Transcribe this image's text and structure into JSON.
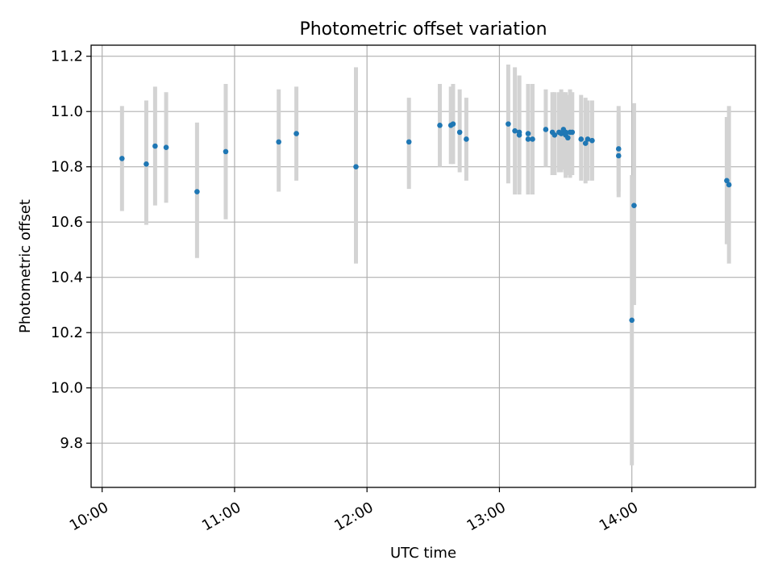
{
  "chart_data": {
    "type": "scatter",
    "title": "Photometric offset variation",
    "xlabel": "UTC time",
    "ylabel": "Photometric offset",
    "xlim": [
      "09:55",
      "14:56"
    ],
    "ylim": [
      9.64,
      11.24
    ],
    "grid": true,
    "x_ticks": [
      "10:00",
      "11:00",
      "12:00",
      "13:00",
      "14:00"
    ],
    "y_ticks": [
      9.8,
      10.0,
      10.2,
      10.4,
      10.6,
      10.8,
      11.0,
      11.2
    ],
    "colors": {
      "point": "#1f77b4",
      "errorbar": "#d3d3d3",
      "grid": "#b0b0b0"
    },
    "series": [
      {
        "x": [
          "10:09",
          "10:20",
          "10:24",
          "10:29",
          "10:43",
          "10:56",
          "11:20",
          "11:28",
          "11:55",
          "12:19",
          "12:33",
          "12:38",
          "12:39",
          "12:42",
          "12:45",
          "13:04",
          "13:07",
          "13:09",
          "13:09",
          "13:13",
          "13:13",
          "13:15",
          "13:21",
          "13:24",
          "13:25",
          "13:27",
          "13:28",
          "13:29",
          "13:30",
          "13:30",
          "13:31",
          "13:32",
          "13:33",
          "13:37",
          "13:39",
          "13:40",
          "13:42",
          "13:54",
          "13:54",
          "14:00",
          "14:01",
          "14:43",
          "14:44"
        ],
        "y": [
          10.83,
          10.81,
          10.875,
          10.87,
          10.71,
          10.855,
          10.89,
          10.92,
          10.8,
          10.89,
          10.95,
          10.95,
          10.955,
          10.925,
          10.9,
          10.955,
          10.93,
          10.915,
          10.925,
          10.92,
          10.9,
          10.9,
          10.935,
          10.925,
          10.915,
          10.925,
          10.92,
          10.935,
          10.915,
          10.925,
          10.905,
          10.925,
          10.925,
          10.9,
          10.885,
          10.9,
          10.895,
          10.865,
          10.84,
          10.245,
          10.66,
          10.75,
          10.735
        ],
        "err_low": [
          10.64,
          10.59,
          10.66,
          10.67,
          10.47,
          10.61,
          10.71,
          10.75,
          10.45,
          10.72,
          10.8,
          10.81,
          10.81,
          10.78,
          10.75,
          10.74,
          10.7,
          10.7,
          10.71,
          10.7,
          10.7,
          10.7,
          10.8,
          10.77,
          10.77,
          10.78,
          10.78,
          10.79,
          10.76,
          10.78,
          10.77,
          10.76,
          10.77,
          10.75,
          10.74,
          10.75,
          10.75,
          10.71,
          10.69,
          9.72,
          10.3,
          10.52,
          10.45
        ],
        "err_high": [
          11.02,
          11.04,
          11.09,
          11.07,
          10.96,
          11.1,
          11.08,
          11.09,
          11.16,
          11.05,
          11.1,
          11.09,
          11.1,
          11.08,
          11.05,
          11.17,
          11.16,
          11.13,
          11.13,
          11.1,
          11.1,
          11.1,
          11.08,
          11.07,
          11.07,
          11.07,
          11.08,
          11.07,
          11.06,
          11.07,
          11.06,
          11.08,
          11.07,
          11.06,
          11.05,
          11.04,
          11.04,
          11.02,
          10.99,
          10.77,
          11.03,
          10.98,
          11.02
        ]
      }
    ]
  }
}
